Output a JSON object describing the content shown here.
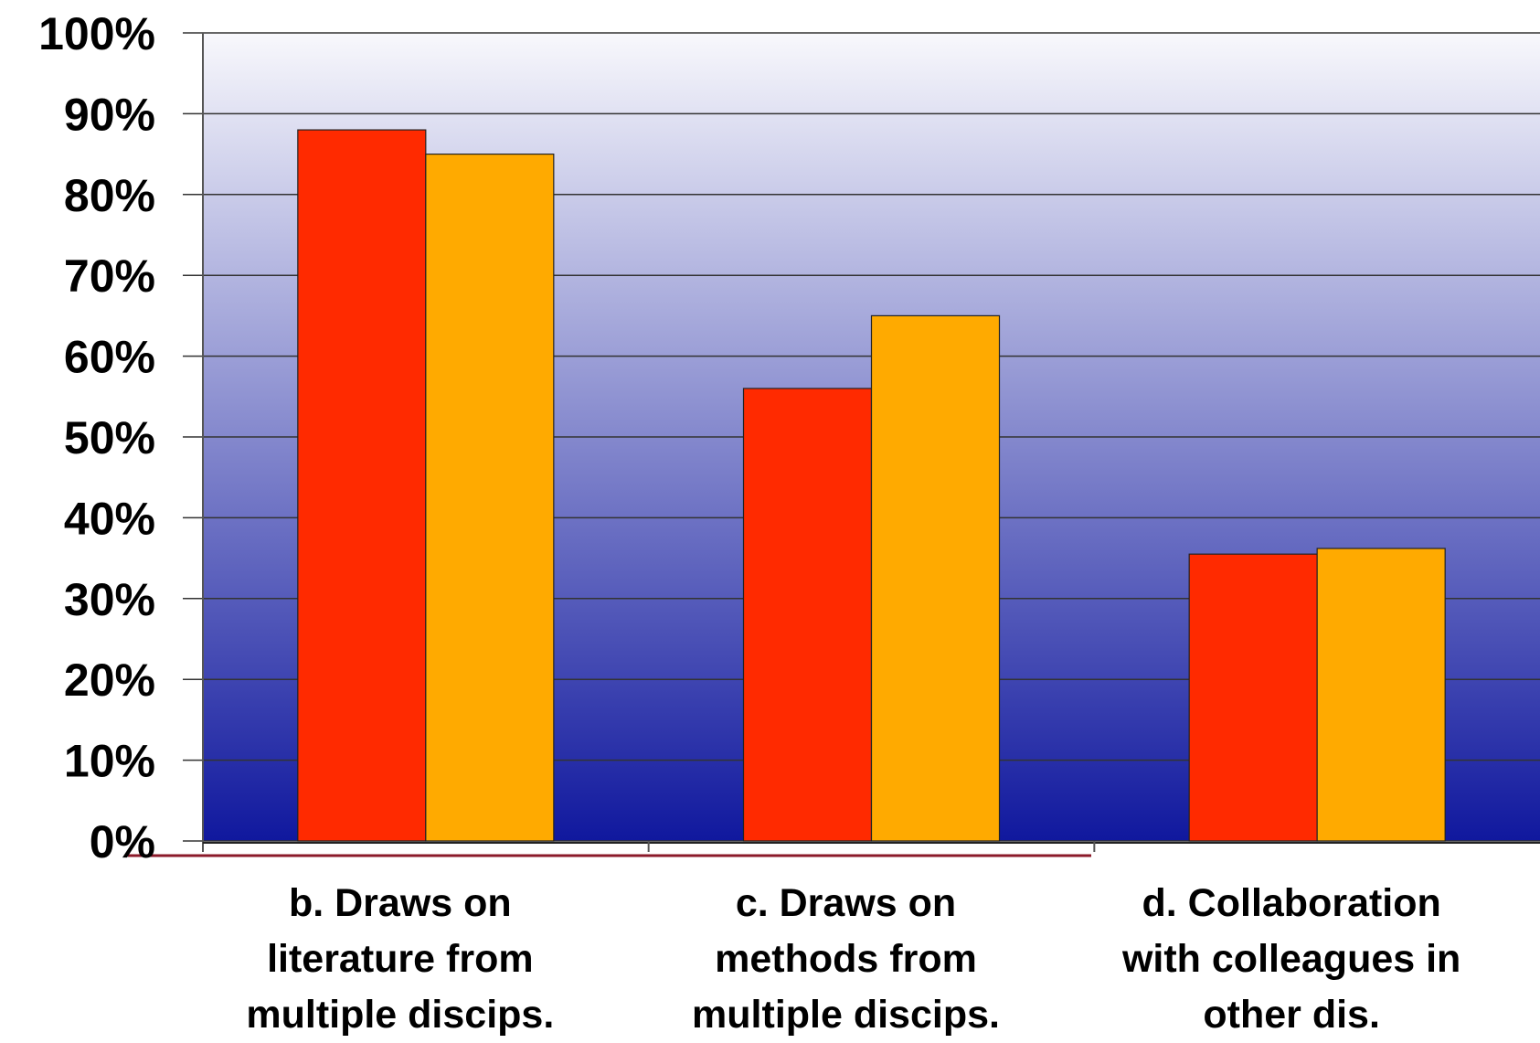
{
  "chart_data": {
    "type": "bar",
    "categories": [
      "b. Draws on literature from multiple discips.",
      "c. Draws on methods from multiple discips.",
      "d. Collaboration with colleagues in other dis."
    ],
    "category_lines": [
      [
        "b. Draws on",
        "literature from",
        "multiple discips."
      ],
      [
        "c. Draws on",
        "methods from",
        "multiple discips."
      ],
      [
        "d. Collaboration",
        "with colleagues in",
        "other dis."
      ]
    ],
    "series": [
      {
        "values": [
          88,
          56,
          35.5
        ],
        "color": "#ff2a00"
      },
      {
        "values": [
          85,
          65,
          36.2
        ],
        "color": "#ffaa00"
      }
    ],
    "ylim": [
      0,
      100
    ],
    "yticks": [
      "0%",
      "10%",
      "20%",
      "30%",
      "40%",
      "50%",
      "60%",
      "70%",
      "80%",
      "90%",
      "100%"
    ],
    "grid": true,
    "background_gradient": [
      "#f8f8fc",
      "#10189e"
    ],
    "accent_line_color": "#8b1a2a"
  }
}
